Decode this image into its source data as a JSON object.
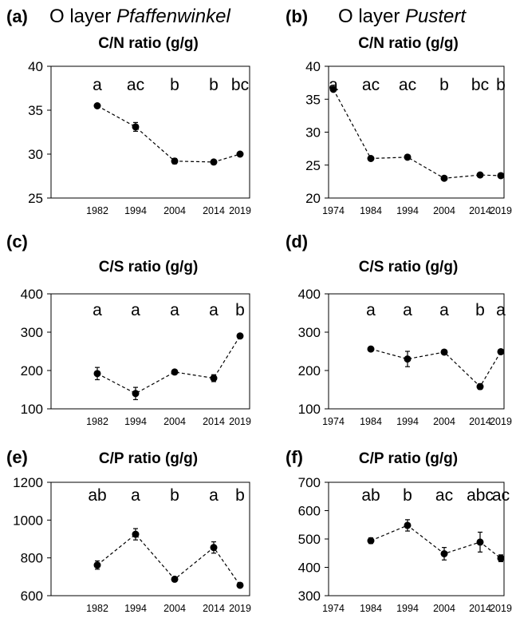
{
  "header": {
    "left_title_prefix": "O layer ",
    "left_title_site": "Pfaffenwinkel",
    "right_title_prefix": "O layer ",
    "right_title_site": "Pustert"
  },
  "chart_data": [
    {
      "panel": "(a)",
      "type": "line",
      "title": "C/N ratio (g/g)",
      "categories": [
        "1982",
        "1994",
        "2004",
        "2014",
        "2019"
      ],
      "values": [
        35.5,
        33.1,
        29.2,
        29.1,
        30.0
      ],
      "errors": [
        0.2,
        0.5,
        0.3,
        0.2,
        0.2
      ],
      "letters": [
        "a",
        "ac",
        "b",
        "b",
        "bc"
      ],
      "ylim": [
        25,
        40
      ],
      "yticks": [
        25,
        30,
        35,
        40
      ],
      "xlabel": "",
      "ylabel": ""
    },
    {
      "panel": "(b)",
      "type": "line",
      "title": "C/N ratio (g/g)",
      "categories": [
        "1974",
        "1984",
        "1994",
        "2004",
        "2014",
        "2019"
      ],
      "values": [
        36.5,
        26.0,
        26.2,
        23.0,
        23.5,
        23.4
      ],
      "errors": [
        0.2,
        0.2,
        0.2,
        0.2,
        0.2,
        0.2
      ],
      "letters": [
        "a",
        "ac",
        "ac",
        "b",
        "bc",
        "b"
      ],
      "ylim": [
        20,
        40
      ],
      "yticks": [
        20,
        25,
        30,
        35,
        40
      ],
      "xlabel": "",
      "ylabel": ""
    },
    {
      "panel": "(c)",
      "type": "line",
      "title": "C/S ratio (g/g)",
      "categories": [
        "1982",
        "1994",
        "2004",
        "2014",
        "2019"
      ],
      "values": [
        192,
        140,
        196,
        180,
        290
      ],
      "errors": [
        16,
        16,
        6,
        9,
        4
      ],
      "letters": [
        "a",
        "a",
        "a",
        "a",
        "b"
      ],
      "ylim": [
        100,
        400
      ],
      "yticks": [
        100,
        200,
        300,
        400
      ],
      "xlabel": "",
      "ylabel": ""
    },
    {
      "panel": "(d)",
      "type": "line",
      "title": "C/S ratio (g/g)",
      "categories": [
        "1974",
        "1984",
        "1994",
        "2004",
        "2014",
        "2019"
      ],
      "values": [
        null,
        256,
        230,
        248,
        158,
        249
      ],
      "errors": [
        null,
        6,
        20,
        5,
        7,
        4
      ],
      "letters": [
        "",
        "a",
        "a",
        "a",
        "b",
        "a"
      ],
      "ylim": [
        100,
        400
      ],
      "yticks": [
        100,
        200,
        300,
        400
      ],
      "xlabel": "",
      "ylabel": ""
    },
    {
      "panel": "(e)",
      "type": "line",
      "title": "C/P ratio (g/g)",
      "categories": [
        "1982",
        "1994",
        "2004",
        "2014",
        "2019"
      ],
      "values": [
        762,
        925,
        687,
        855,
        655
      ],
      "errors": [
        22,
        30,
        12,
        30,
        12
      ],
      "letters": [
        "ab",
        "a",
        "b",
        "a",
        "b"
      ],
      "ylim": [
        600,
        1200
      ],
      "yticks": [
        600,
        800,
        1000,
        1200
      ],
      "xlabel": "",
      "ylabel": ""
    },
    {
      "panel": "(f)",
      "type": "line",
      "title": "C/P ratio (g/g)",
      "categories": [
        "1974",
        "1984",
        "1994",
        "2004",
        "2014",
        "2019"
      ],
      "values": [
        null,
        494,
        548,
        448,
        489,
        432
      ],
      "errors": [
        null,
        10,
        20,
        22,
        35,
        12
      ],
      "letters": [
        "ab",
        "b",
        "ac",
        "abc",
        "ac"
      ],
      "letter_positions": [
        1,
        2,
        3,
        4,
        5
      ],
      "ylim": [
        300,
        700
      ],
      "yticks": [
        300,
        400,
        500,
        600,
        700
      ],
      "xlabel": "",
      "ylabel": ""
    }
  ]
}
